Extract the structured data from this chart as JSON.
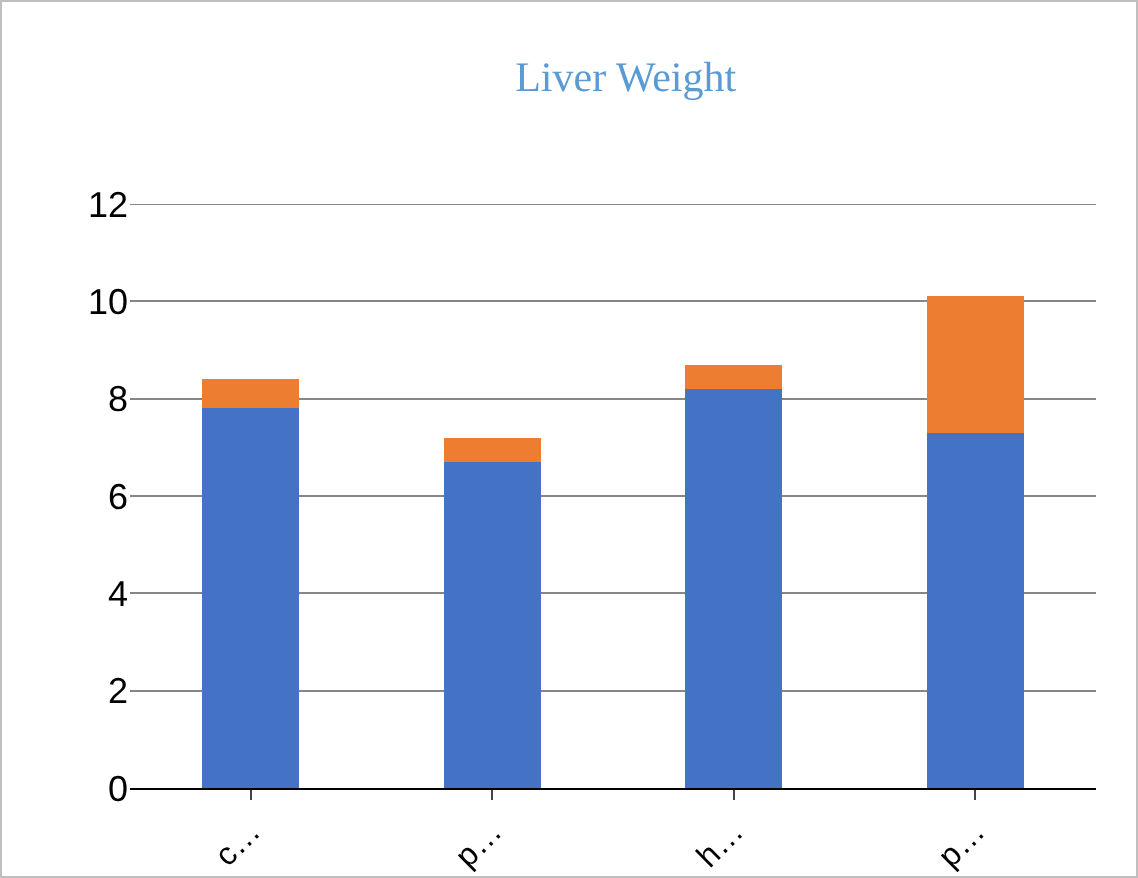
{
  "chart_data": {
    "type": "bar",
    "title": "Liver Weight",
    "stacked": true,
    "categories": [
      "c…",
      "p…",
      "h…",
      "p…"
    ],
    "series": [
      {
        "color": "#4472c4",
        "values": [
          7.8,
          6.7,
          8.2,
          7.3
        ]
      },
      {
        "color": "#ed7d31",
        "values": [
          0.6,
          0.5,
          0.5,
          2.8
        ]
      }
    ],
    "ylim": [
      0,
      12
    ],
    "yticks": [
      0,
      2,
      4,
      6,
      8,
      10,
      12
    ],
    "grid": "y"
  }
}
